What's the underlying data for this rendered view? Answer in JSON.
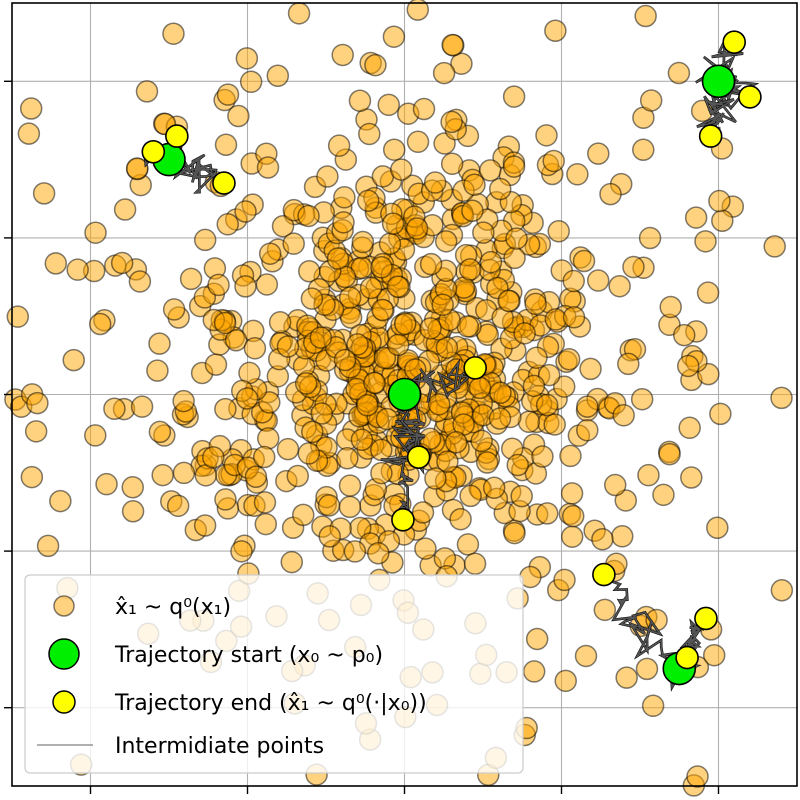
{
  "chart_data": {
    "type": "scatter",
    "title": "",
    "xlabel": "",
    "ylabel": "",
    "xlim": [
      -2.5,
      2.5
    ],
    "ylim": [
      -2.5,
      2.5
    ],
    "grid": true,
    "tick_labels_shown": false,
    "legend": {
      "placement": "lower-left",
      "entries": [
        {
          "label": "x̂₁ ~ q⁰(x₁)",
          "marker": "orange-circle"
        },
        {
          "label": "Trajectory start (x₀ ~ p₀)",
          "marker": "green-circle"
        },
        {
          "label": "Trajectory end (x̂₁ ~ q⁰(·|x₀))",
          "marker": "yellow-circle"
        },
        {
          "label": "Intermidiate points",
          "marker": "gray-line"
        }
      ]
    },
    "colors": {
      "samples": "#ffa500",
      "start": "#00ee00",
      "end": "#ffff00",
      "paths": "#555555"
    },
    "samples_distribution": {
      "description_type": "mixture",
      "components": [
        {
          "weight": 0.55,
          "mean": [
            0,
            0.3
          ],
          "std": 0.62
        },
        {
          "weight": 0.45,
          "mean": [
            0,
            0
          ],
          "std": 1.3
        }
      ],
      "count": 900
    },
    "trajectories": [
      {
        "start": [
          -1.5,
          1.5
        ],
        "ends": [
          [
            -1.6,
            1.55
          ],
          [
            -1.45,
            1.65
          ],
          [
            -1.15,
            1.35
          ]
        ]
      },
      {
        "start": [
          2.0,
          2.0
        ],
        "ends": [
          [
            2.1,
            2.25
          ],
          [
            2.2,
            1.9
          ],
          [
            1.95,
            1.65
          ]
        ]
      },
      {
        "start": [
          0.0,
          0.0
        ],
        "ends": [
          [
            0.45,
            0.17
          ],
          [
            0.09,
            -0.4
          ],
          [
            -0.01,
            -0.8
          ]
        ]
      },
      {
        "start": [
          1.75,
          -1.75
        ],
        "ends": [
          [
            1.27,
            -1.15
          ],
          [
            1.92,
            -1.43
          ],
          [
            1.8,
            -1.68
          ]
        ]
      }
    ]
  }
}
